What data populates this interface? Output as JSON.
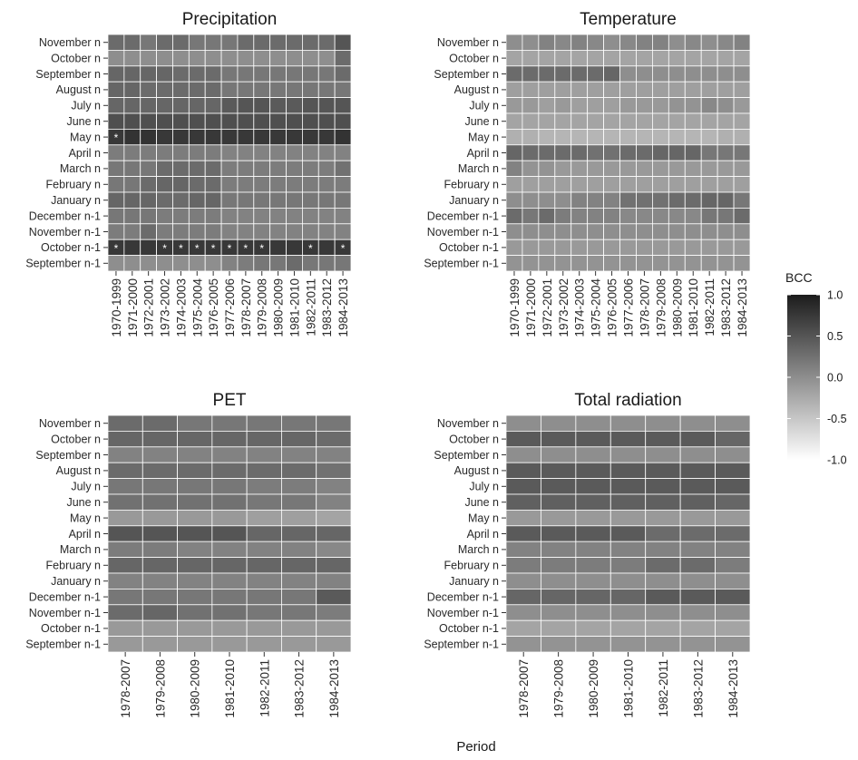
{
  "chart_data": {
    "type": "heatmap",
    "xlabel": "Period",
    "legend": {
      "title": "BCC",
      "range": [
        -1.0,
        1.0
      ],
      "ticks": [
        "1.0",
        "0.5",
        "0.0",
        "-0.5",
        "-1.0"
      ],
      "colors": [
        "#ffffff",
        "#1c1c1c"
      ],
      "placement": "right"
    },
    "months": [
      "November n",
      "October n",
      "September n",
      "August n",
      "July n",
      "June n",
      "May n",
      "April n",
      "March n",
      "February n",
      "January n",
      "December n-1",
      "November n-1",
      "October n-1",
      "September n-1"
    ],
    "panels": [
      {
        "title": "Precipitation",
        "periods": [
          "1970-1999",
          "1971-2000",
          "1972-2001",
          "1973-2002",
          "1974-2003",
          "1975-2004",
          "1976-2005",
          "1977-2006",
          "1978-2007",
          "1979-2008",
          "1980-2009",
          "1981-2010",
          "1982-2011",
          "1983-2012",
          "1984-2013"
        ],
        "significance_marker": "*",
        "significant": [
          [
            6,
            0
          ],
          [
            13,
            0
          ],
          [
            13,
            3
          ],
          [
            13,
            4
          ],
          [
            13,
            5
          ],
          [
            13,
            6
          ],
          [
            13,
            7
          ],
          [
            13,
            8
          ],
          [
            13,
            9
          ],
          [
            13,
            12
          ],
          [
            13,
            14
          ]
        ],
        "values": [
          [
            0.3,
            0.3,
            0.2,
            0.3,
            0.3,
            0.2,
            0.2,
            0.2,
            0.3,
            0.3,
            0.3,
            0.3,
            0.3,
            0.3,
            0.5
          ],
          [
            0.0,
            0.0,
            0.0,
            0.0,
            0.0,
            0.0,
            0.0,
            0.0,
            0.0,
            0.0,
            0.0,
            0.0,
            0.0,
            0.0,
            0.3
          ],
          [
            0.35,
            0.35,
            0.35,
            0.35,
            0.3,
            0.3,
            0.3,
            0.2,
            0.2,
            0.2,
            0.2,
            0.2,
            0.2,
            0.2,
            0.3
          ],
          [
            0.35,
            0.35,
            0.3,
            0.3,
            0.3,
            0.3,
            0.3,
            0.2,
            0.2,
            0.2,
            0.2,
            0.2,
            0.2,
            0.2,
            0.2
          ],
          [
            0.35,
            0.35,
            0.35,
            0.35,
            0.35,
            0.35,
            0.35,
            0.45,
            0.5,
            0.5,
            0.45,
            0.45,
            0.5,
            0.5,
            0.5
          ],
          [
            0.55,
            0.55,
            0.55,
            0.55,
            0.55,
            0.55,
            0.55,
            0.55,
            0.55,
            0.55,
            0.55,
            0.55,
            0.55,
            0.55,
            0.55
          ],
          [
            0.75,
            0.8,
            0.8,
            0.75,
            0.75,
            0.75,
            0.75,
            0.75,
            0.75,
            0.75,
            0.75,
            0.75,
            0.75,
            0.75,
            0.8
          ],
          [
            0.15,
            0.15,
            0.15,
            0.15,
            0.15,
            0.15,
            0.15,
            0.1,
            0.1,
            0.1,
            0.1,
            0.1,
            0.1,
            0.1,
            0.1
          ],
          [
            0.2,
            0.2,
            0.2,
            0.3,
            0.3,
            0.3,
            0.3,
            0.15,
            0.15,
            0.15,
            0.15,
            0.15,
            0.15,
            0.15,
            0.25
          ],
          [
            0.2,
            0.2,
            0.3,
            0.35,
            0.35,
            0.3,
            0.3,
            0.15,
            0.15,
            0.15,
            0.15,
            0.15,
            0.15,
            0.15,
            0.15
          ],
          [
            0.35,
            0.35,
            0.35,
            0.3,
            0.3,
            0.35,
            0.35,
            0.2,
            0.2,
            0.2,
            0.2,
            0.2,
            0.2,
            0.2,
            0.2
          ],
          [
            0.2,
            0.2,
            0.2,
            0.15,
            0.15,
            0.15,
            0.15,
            0.1,
            0.1,
            0.1,
            0.1,
            0.1,
            0.1,
            0.1,
            0.1
          ],
          [
            0.15,
            0.15,
            0.3,
            0.15,
            0.15,
            0.15,
            0.15,
            0.1,
            0.1,
            0.1,
            0.1,
            0.1,
            0.1,
            0.1,
            0.1
          ],
          [
            0.75,
            0.75,
            0.75,
            0.75,
            0.75,
            0.75,
            0.75,
            0.75,
            0.75,
            0.75,
            0.75,
            0.75,
            0.75,
            0.75,
            0.75
          ],
          [
            0.0,
            0.0,
            0.0,
            0.0,
            0.0,
            0.0,
            0.0,
            0.1,
            0.15,
            0.2,
            0.2,
            0.3,
            0.2,
            0.2,
            0.2
          ]
        ]
      },
      {
        "title": "Temperature",
        "periods": [
          "1970-1999",
          "1971-2000",
          "1972-2001",
          "1973-2002",
          "1974-2003",
          "1975-2004",
          "1976-2005",
          "1977-2006",
          "1978-2007",
          "1979-2008",
          "1980-2009",
          "1981-2010",
          "1982-2011",
          "1983-2012",
          "1984-2013"
        ],
        "values": [
          [
            0.0,
            0.0,
            0.1,
            0.05,
            0.1,
            0.05,
            0.0,
            0.05,
            0.1,
            0.1,
            0.0,
            0.05,
            0.0,
            0.05,
            0.1
          ],
          [
            -0.2,
            -0.2,
            -0.2,
            -0.2,
            -0.2,
            -0.2,
            -0.2,
            -0.2,
            -0.2,
            -0.2,
            -0.2,
            -0.2,
            -0.2,
            -0.2,
            -0.2
          ],
          [
            0.3,
            0.3,
            0.3,
            0.3,
            0.3,
            0.3,
            0.35,
            0.0,
            0.0,
            0.0,
            0.0,
            0.0,
            0.0,
            0.0,
            0.0
          ],
          [
            -0.15,
            -0.15,
            -0.15,
            -0.15,
            -0.15,
            -0.15,
            -0.15,
            -0.15,
            -0.15,
            -0.15,
            -0.15,
            -0.15,
            -0.15,
            -0.15,
            -0.15
          ],
          [
            -0.1,
            -0.1,
            -0.15,
            -0.1,
            -0.15,
            -0.15,
            -0.15,
            -0.1,
            -0.1,
            -0.1,
            -0.05,
            -0.05,
            0.05,
            0.0,
            -0.1
          ],
          [
            -0.2,
            -0.2,
            -0.2,
            -0.2,
            -0.2,
            -0.2,
            -0.2,
            -0.2,
            -0.2,
            -0.2,
            -0.2,
            -0.2,
            -0.2,
            -0.2,
            -0.2
          ],
          [
            -0.3,
            -0.3,
            -0.35,
            -0.35,
            -0.35,
            -0.35,
            -0.35,
            -0.35,
            -0.35,
            -0.35,
            -0.35,
            -0.35,
            -0.35,
            -0.3,
            -0.3
          ],
          [
            0.35,
            0.3,
            0.3,
            0.3,
            0.3,
            0.25,
            0.25,
            0.3,
            0.3,
            0.35,
            0.35,
            0.35,
            0.2,
            0.2,
            0.2
          ],
          [
            0.1,
            -0.05,
            -0.05,
            -0.1,
            -0.1,
            -0.1,
            -0.1,
            -0.1,
            -0.1,
            -0.1,
            -0.1,
            -0.1,
            -0.1,
            -0.1,
            -0.1
          ],
          [
            -0.15,
            -0.15,
            -0.15,
            -0.15,
            -0.15,
            -0.15,
            -0.15,
            -0.15,
            -0.15,
            -0.15,
            -0.15,
            -0.15,
            -0.15,
            -0.15,
            -0.15
          ],
          [
            0.0,
            0.0,
            0.0,
            0.0,
            0.1,
            0.1,
            0.1,
            0.25,
            0.25,
            0.25,
            0.3,
            0.3,
            0.35,
            0.35,
            0.2
          ],
          [
            0.3,
            0.2,
            0.3,
            0.15,
            0.1,
            0.1,
            0.1,
            0.05,
            0.05,
            0.05,
            0.05,
            0.05,
            0.2,
            0.2,
            0.3
          ],
          [
            0.0,
            0.0,
            0.0,
            0.0,
            0.0,
            0.0,
            0.0,
            0.0,
            0.0,
            0.0,
            0.0,
            0.0,
            0.0,
            0.0,
            0.0
          ],
          [
            -0.1,
            -0.1,
            -0.1,
            -0.1,
            -0.1,
            -0.1,
            -0.1,
            -0.1,
            -0.1,
            -0.1,
            -0.1,
            -0.1,
            -0.1,
            -0.1,
            -0.1
          ],
          [
            -0.05,
            -0.05,
            -0.05,
            -0.05,
            -0.05,
            -0.05,
            -0.05,
            -0.05,
            -0.05,
            -0.05,
            -0.05,
            -0.05,
            -0.05,
            -0.05,
            -0.05
          ]
        ]
      },
      {
        "title": "PET",
        "periods": [
          "1978-2007",
          "1979-2008",
          "1980-2009",
          "1981-2010",
          "1982-2011",
          "1983-2012",
          "1984-2013"
        ],
        "values": [
          [
            0.3,
            0.3,
            0.2,
            0.2,
            0.2,
            0.2,
            0.2
          ],
          [
            0.35,
            0.35,
            0.35,
            0.35,
            0.35,
            0.35,
            0.3
          ],
          [
            0.1,
            0.1,
            0.1,
            0.1,
            0.1,
            0.1,
            0.1
          ],
          [
            0.3,
            0.3,
            0.3,
            0.3,
            0.3,
            0.3,
            0.25
          ],
          [
            0.2,
            0.2,
            0.2,
            0.2,
            0.15,
            0.15,
            0.1
          ],
          [
            0.25,
            0.25,
            0.25,
            0.25,
            0.2,
            0.2,
            0.1
          ],
          [
            -0.1,
            -0.1,
            -0.1,
            -0.1,
            -0.15,
            -0.15,
            -0.2
          ],
          [
            0.5,
            0.5,
            0.5,
            0.5,
            0.35,
            0.35,
            0.35
          ],
          [
            0.15,
            0.15,
            0.1,
            0.1,
            0.1,
            0.1,
            0.05
          ],
          [
            0.35,
            0.35,
            0.35,
            0.35,
            0.35,
            0.35,
            0.35
          ],
          [
            0.1,
            0.1,
            0.1,
            0.1,
            0.1,
            0.1,
            0.1
          ],
          [
            0.2,
            0.2,
            0.2,
            0.2,
            0.2,
            0.2,
            0.45
          ],
          [
            0.3,
            0.35,
            0.25,
            0.25,
            0.2,
            0.2,
            0.15
          ],
          [
            -0.1,
            -0.1,
            -0.1,
            -0.1,
            -0.1,
            -0.1,
            -0.1
          ],
          [
            -0.1,
            -0.1,
            -0.1,
            -0.1,
            -0.1,
            -0.1,
            -0.1
          ]
        ]
      },
      {
        "title": "Total radiation",
        "periods": [
          "1978-2007",
          "1979-2008",
          "1980-2009",
          "1981-2010",
          "1982-2011",
          "1983-2012",
          "1984-2013"
        ],
        "values": [
          [
            0.0,
            0.0,
            0.0,
            0.0,
            0.0,
            0.0,
            0.0
          ],
          [
            0.45,
            0.45,
            0.45,
            0.45,
            0.45,
            0.45,
            0.35
          ],
          [
            0.0,
            0.0,
            0.0,
            0.0,
            0.0,
            0.0,
            0.0
          ],
          [
            0.45,
            0.45,
            0.45,
            0.45,
            0.45,
            0.45,
            0.45
          ],
          [
            0.45,
            0.45,
            0.45,
            0.45,
            0.45,
            0.45,
            0.45
          ],
          [
            0.4,
            0.4,
            0.4,
            0.4,
            0.4,
            0.4,
            0.35
          ],
          [
            -0.1,
            -0.1,
            -0.1,
            -0.1,
            -0.1,
            -0.1,
            -0.1
          ],
          [
            0.45,
            0.45,
            0.45,
            0.45,
            0.3,
            0.3,
            0.3
          ],
          [
            0.1,
            0.1,
            0.1,
            0.1,
            0.1,
            0.1,
            0.1
          ],
          [
            0.15,
            0.15,
            0.15,
            0.15,
            0.3,
            0.3,
            0.15
          ],
          [
            0.0,
            0.0,
            0.0,
            0.0,
            0.0,
            0.0,
            0.0
          ],
          [
            0.35,
            0.35,
            0.35,
            0.35,
            0.45,
            0.45,
            0.45
          ],
          [
            0.0,
            0.0,
            0.0,
            0.0,
            0.0,
            0.0,
            0.0
          ],
          [
            -0.2,
            -0.2,
            -0.2,
            -0.2,
            -0.2,
            -0.2,
            -0.2
          ],
          [
            -0.05,
            -0.05,
            -0.05,
            -0.05,
            -0.05,
            -0.05,
            -0.05
          ]
        ]
      }
    ]
  }
}
